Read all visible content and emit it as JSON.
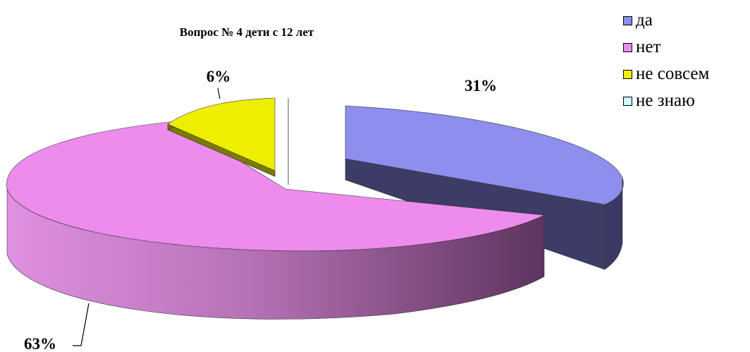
{
  "chart_data": {
    "type": "pie",
    "title": "Вопрос № 4 дети с 12 лет",
    "three_d": true,
    "exploded": true,
    "legend_position": "top-right",
    "slices": [
      {
        "name": "да",
        "value": 31,
        "label": "31%",
        "color": "#8E8EEE"
      },
      {
        "name": "нет",
        "value": 63,
        "label": "63%",
        "color": "#EE8CEE"
      },
      {
        "name": "не совсем",
        "value": 6,
        "label": "6%",
        "color": "#EEEE00"
      },
      {
        "name": "не знаю",
        "value": 0,
        "label": "",
        "color": "#CCFFFF"
      }
    ]
  }
}
